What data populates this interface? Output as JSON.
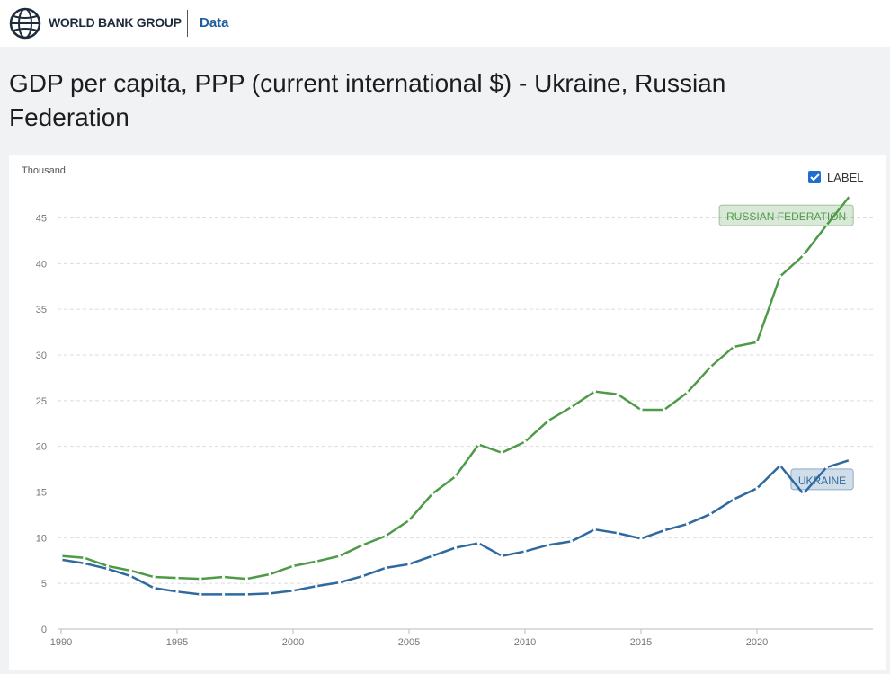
{
  "header": {
    "logo": "WORLD BANK GROUP",
    "section": "Data"
  },
  "chart_data": {
    "type": "line",
    "title": "GDP per capita, PPP (current international $) - Ukraine, Russian Federation",
    "ylabel": "Thousand",
    "label_checkbox": "LABEL",
    "x": [
      1990,
      1991,
      1992,
      1993,
      1994,
      1995,
      1996,
      1997,
      1998,
      1999,
      2000,
      2001,
      2002,
      2003,
      2004,
      2005,
      2006,
      2007,
      2008,
      2009,
      2010,
      2011,
      2012,
      2013,
      2014,
      2015,
      2016,
      2017,
      2018,
      2019,
      2020,
      2021,
      2022,
      2023,
      2024
    ],
    "xlim": [
      1990,
      2025
    ],
    "xticks": [
      1990,
      1995,
      2000,
      2005,
      2010,
      2015,
      2020
    ],
    "ylim": [
      0,
      48
    ],
    "yticks": [
      0,
      5,
      10,
      15,
      20,
      25,
      30,
      35,
      40,
      45
    ],
    "grid": true,
    "series": [
      {
        "name": "RUSSIAN FEDERATION",
        "color": "#4f9a48",
        "values": [
          8.0,
          7.8,
          6.9,
          6.4,
          5.7,
          5.6,
          5.5,
          5.7,
          5.5,
          6.0,
          6.9,
          7.4,
          8.0,
          9.2,
          10.2,
          11.9,
          14.8,
          16.7,
          20.2,
          19.3,
          20.5,
          22.8,
          24.3,
          26.0,
          25.7,
          24.0,
          24.0,
          25.9,
          28.7,
          30.9,
          31.4,
          38.6,
          40.9,
          44.2,
          47.4
        ]
      },
      {
        "name": "UKRAINE",
        "color": "#2f6a9f",
        "values": [
          7.6,
          7.2,
          6.6,
          5.8,
          4.5,
          4.1,
          3.8,
          3.8,
          3.8,
          3.9,
          4.2,
          4.7,
          5.1,
          5.8,
          6.7,
          7.1,
          8.0,
          8.9,
          9.4,
          8.0,
          8.5,
          9.2,
          9.6,
          10.9,
          10.5,
          9.9,
          10.8,
          11.5,
          12.6,
          14.2,
          15.4,
          17.9,
          14.8,
          17.7,
          18.5
        ]
      }
    ]
  }
}
